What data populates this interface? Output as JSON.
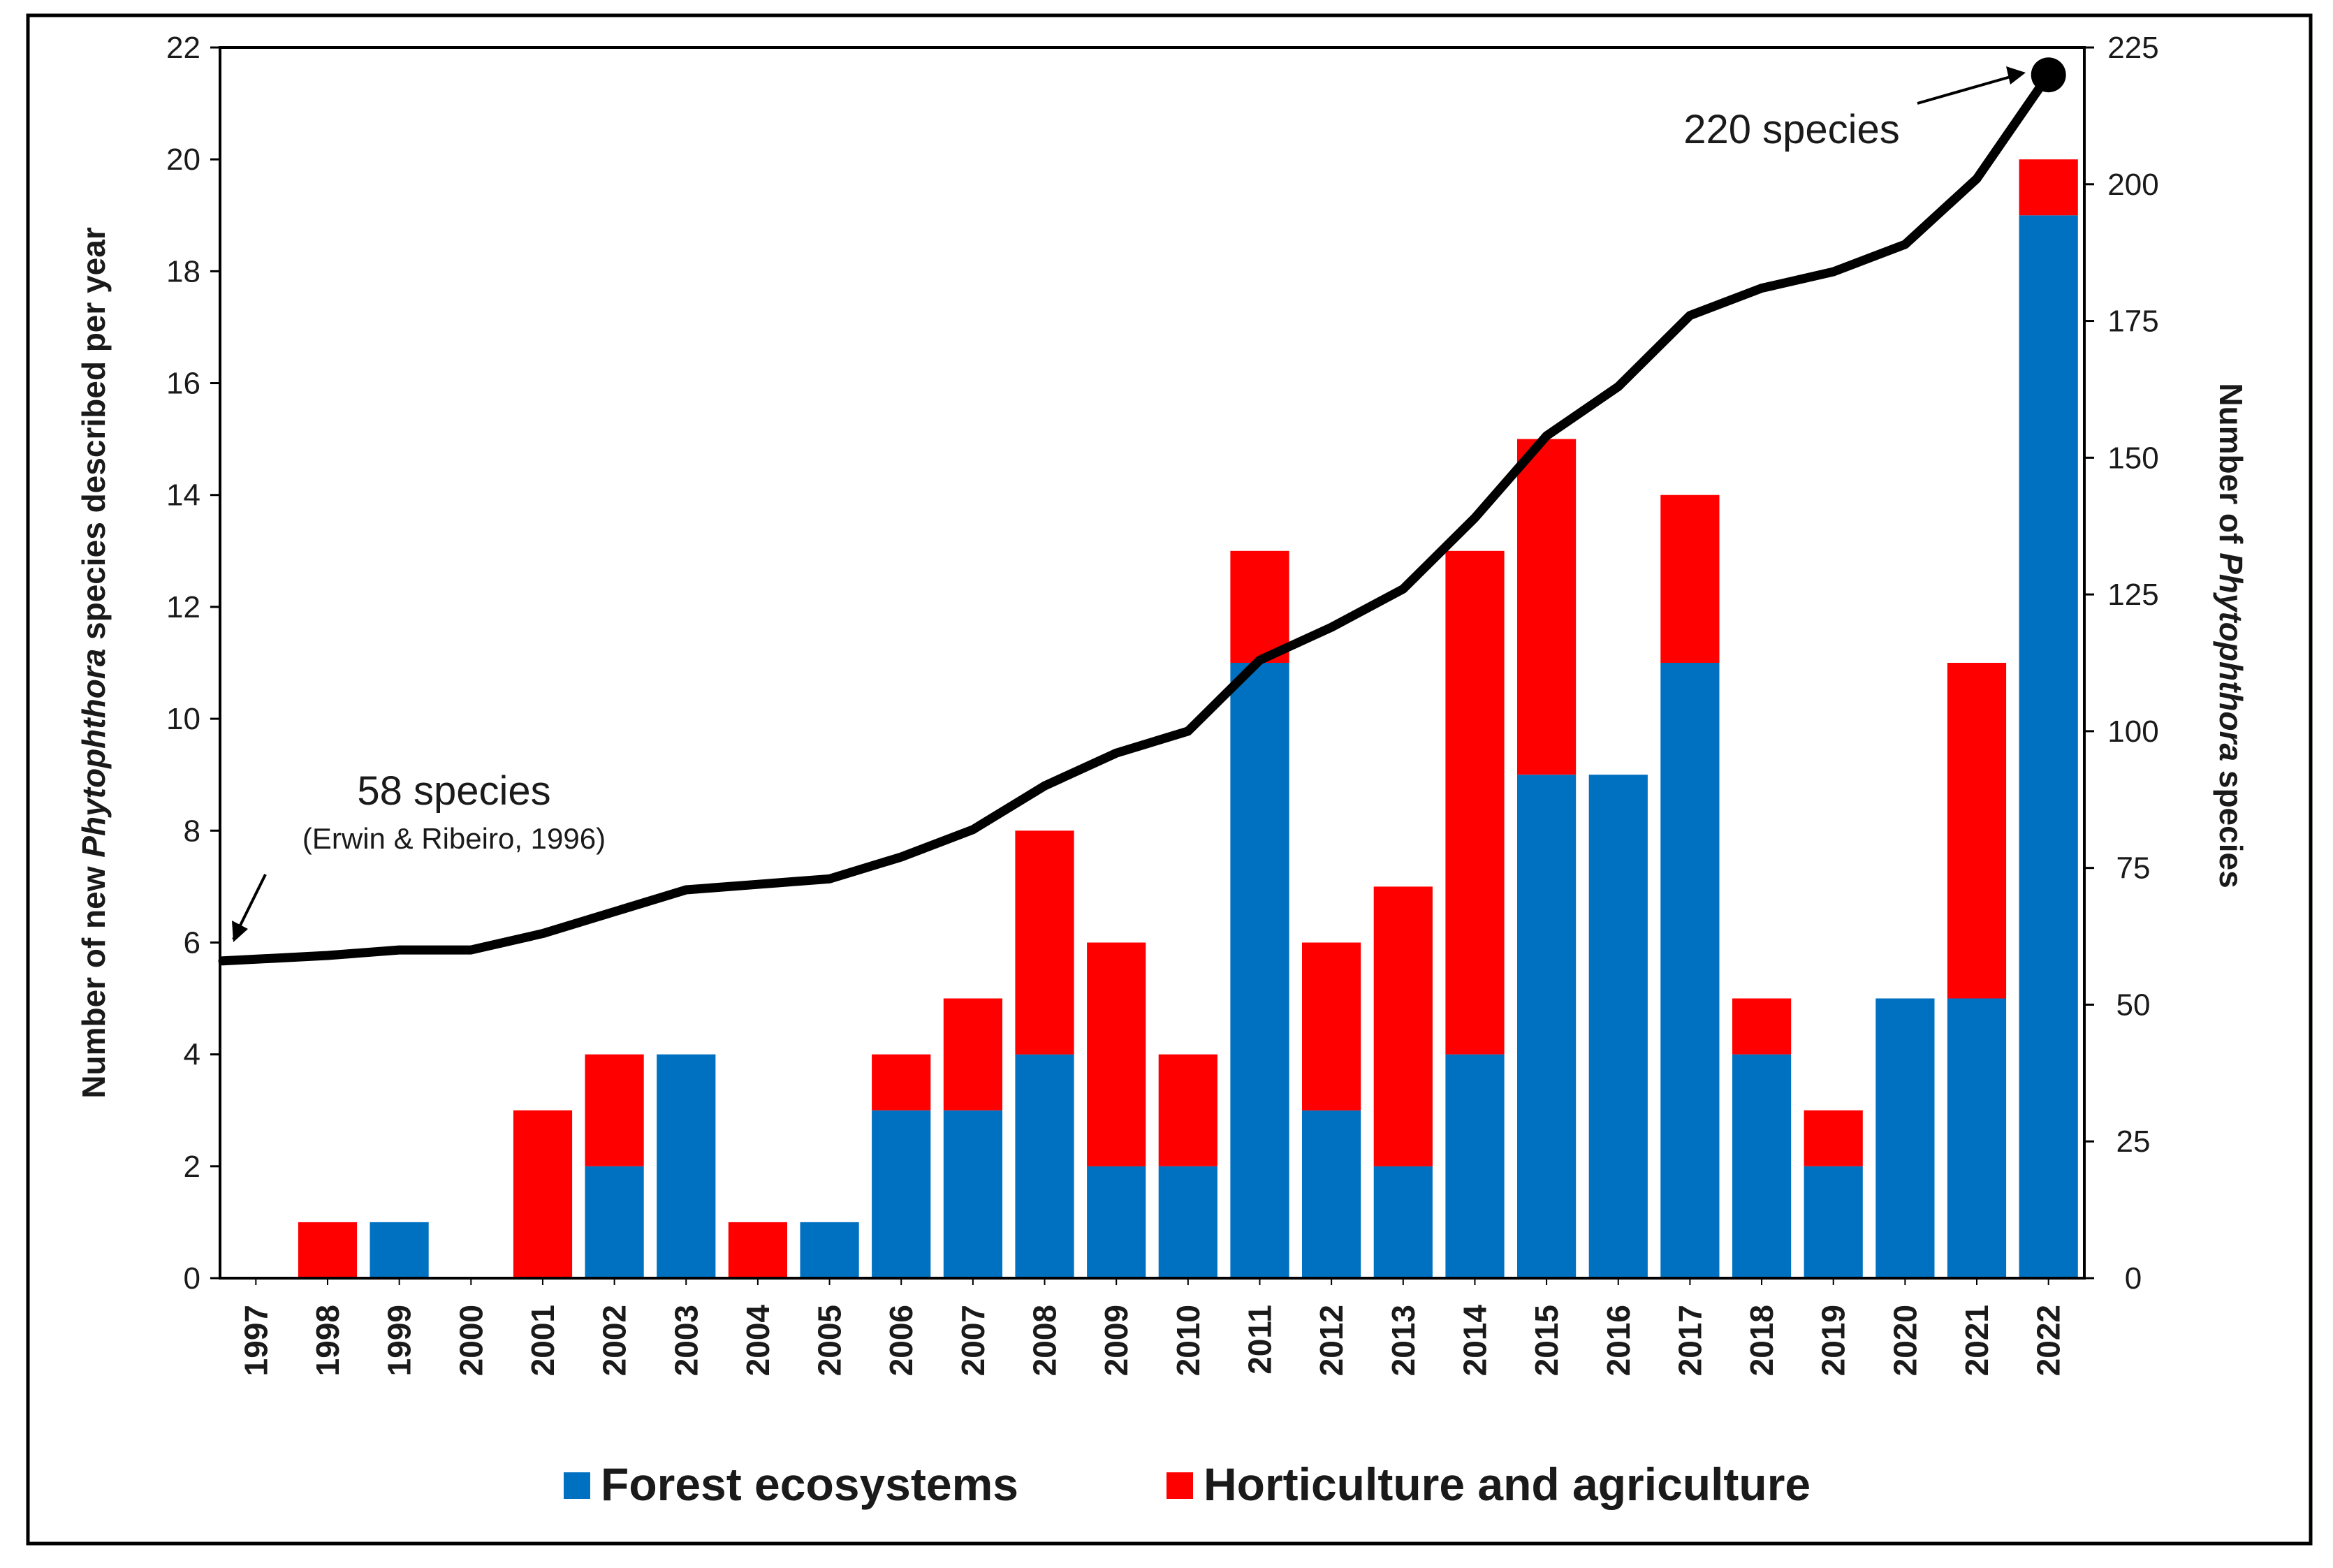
{
  "chart_data": {
    "type": "bar",
    "stacked": true,
    "categories": [
      "1997",
      "1998",
      "1999",
      "2000",
      "2001",
      "2002",
      "2003",
      "2004",
      "2005",
      "2006",
      "2007",
      "2008",
      "2009",
      "2010",
      "2011",
      "2012",
      "2013",
      "2014",
      "2015",
      "2016",
      "2017",
      "2018",
      "2019",
      "2020",
      "2021",
      "2022"
    ],
    "series": [
      {
        "name": "Forest ecosystems",
        "color": "#0070c0",
        "values": [
          0,
          0,
          1,
          0,
          0,
          2,
          4,
          0,
          1,
          3,
          3,
          4,
          2,
          2,
          11,
          3,
          2,
          4,
          9,
          9,
          11,
          4,
          2,
          5,
          5,
          19
        ]
      },
      {
        "name": "Horticulture and agriculture",
        "color": "#ff0000",
        "values": [
          0,
          1,
          0,
          0,
          3,
          2,
          0,
          1,
          0,
          1,
          2,
          4,
          4,
          2,
          2,
          3,
          5,
          9,
          6,
          0,
          3,
          1,
          1,
          0,
          6,
          1
        ]
      }
    ],
    "line_series": {
      "name": "Cumulative number of Phytophthora species",
      "axis": "right",
      "color": "#000000",
      "values": [
        58,
        59,
        60,
        60,
        63,
        67,
        71,
        72,
        73,
        77,
        82,
        90,
        96,
        100,
        113,
        119,
        126,
        139,
        154,
        163,
        176,
        181,
        184,
        189,
        201,
        220
      ]
    },
    "ylabel_left_parts": [
      "Number of new ",
      "Phytophthora",
      " species described per year"
    ],
    "ylabel_right_parts": [
      "Number of ",
      "Phytophthora",
      " species"
    ],
    "ylim_left": [
      0,
      22
    ],
    "yticks_left": [
      "0",
      "2",
      "4",
      "6",
      "8",
      "10",
      "12",
      "14",
      "16",
      "18",
      "20",
      "22"
    ],
    "ylim_right": [
      0,
      225
    ],
    "yticks_right": [
      "0",
      "25",
      "50",
      "75",
      "100",
      "125",
      "150",
      "175",
      "200",
      "225"
    ],
    "grid": false,
    "legend_position": "bottom-center",
    "annotations": {
      "start_label": "58 species",
      "start_sub": "(Erwin & Ribeiro, 1996)",
      "end_label": "220 species"
    }
  }
}
